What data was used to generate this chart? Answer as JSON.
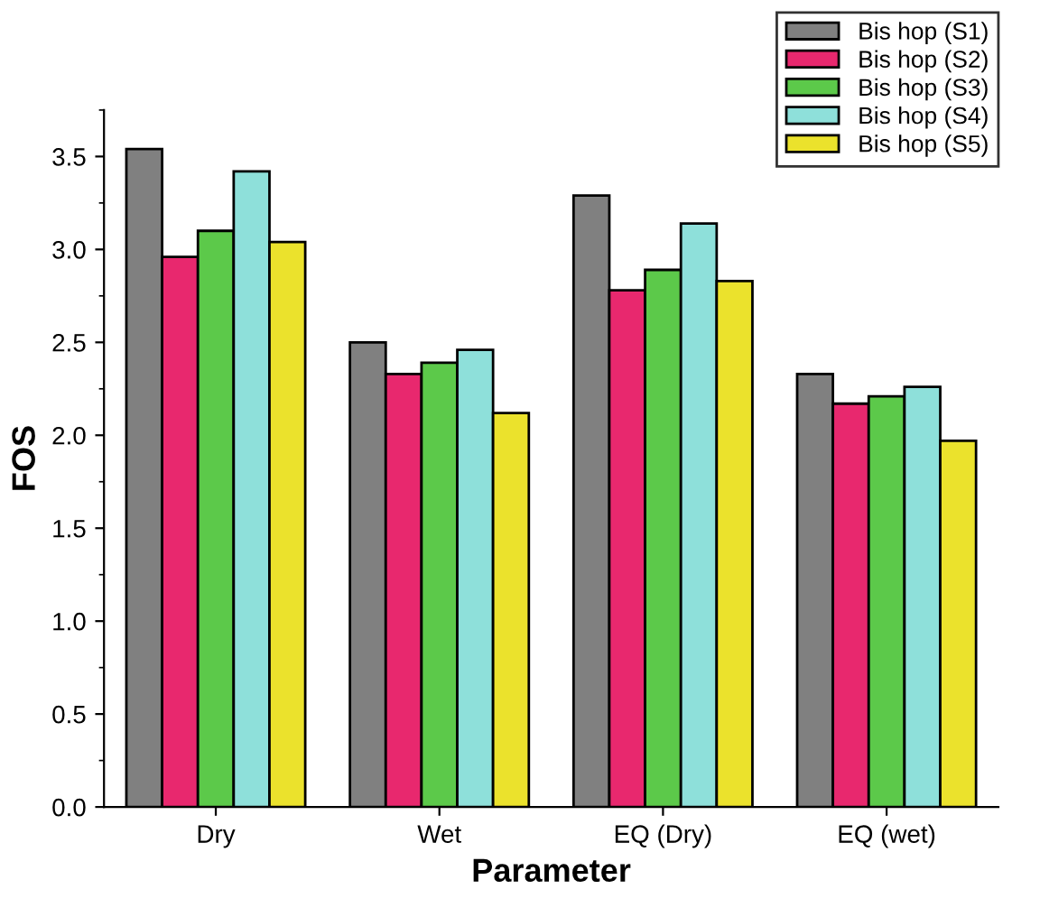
{
  "chart_data": {
    "type": "bar",
    "xlabel": "Parameter",
    "ylabel": "FOS",
    "categories": [
      "Dry",
      "Wet",
      "EQ (Dry)",
      "EQ (wet)"
    ],
    "series": [
      {
        "name": "Bis hop (S1)",
        "color": "#808080",
        "values": [
          3.54,
          2.5,
          3.29,
          2.33
        ]
      },
      {
        "name": "Bis hop (S2)",
        "color": "#e8286e",
        "values": [
          2.96,
          2.33,
          2.78,
          2.17
        ]
      },
      {
        "name": "Bis hop (S3)",
        "color": "#5cc94a",
        "values": [
          3.1,
          2.39,
          2.89,
          2.21
        ]
      },
      {
        "name": "Bis hop (S4)",
        "color": "#8ee0da",
        "values": [
          3.42,
          2.46,
          3.14,
          2.26
        ]
      },
      {
        "name": "Bis hop (S5)",
        "color": "#ebe22c",
        "values": [
          3.04,
          2.12,
          2.83,
          1.97
        ]
      }
    ],
    "ylim": [
      0,
      3.75
    ],
    "yticks": [
      {
        "value": 0,
        "label": "0.0"
      },
      0.5,
      {
        "value": 1,
        "label": "1.0"
      },
      1.5,
      {
        "value": 2,
        "label": "2.0"
      },
      2.5,
      {
        "value": 3,
        "label": "3.0"
      },
      3.5
    ],
    "grid": false,
    "legend": "top right"
  }
}
